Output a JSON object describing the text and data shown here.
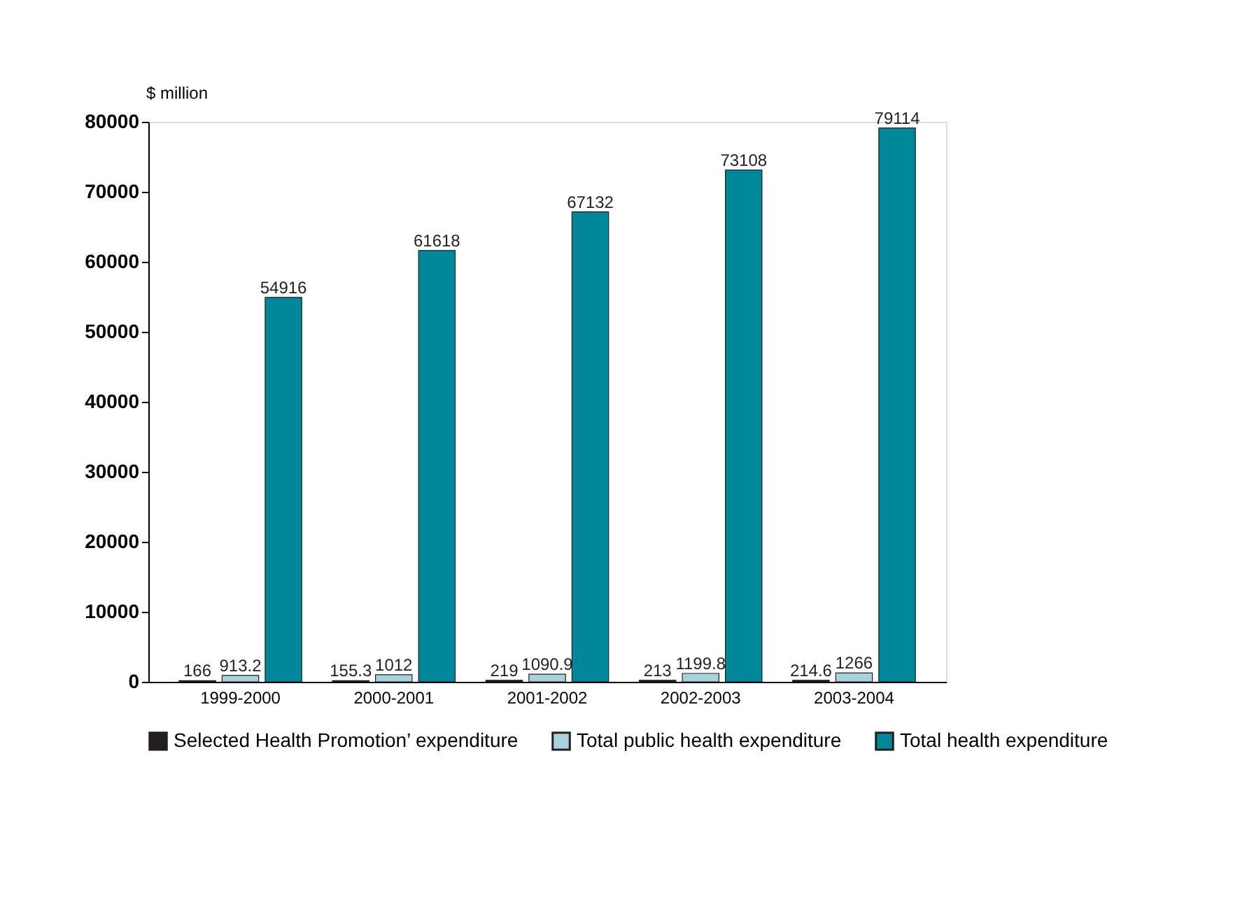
{
  "chart_data": {
    "type": "bar",
    "ylabel": "$ million",
    "categories": [
      "1999-2000",
      "2000-2001",
      "2001-2002",
      "2002-2003",
      "2003-2004"
    ],
    "series": [
      {
        "name": "Selected Health Promotion’ expenditure",
        "color": "#231f20",
        "values": [
          166,
          155.3,
          219,
          213,
          214.6
        ]
      },
      {
        "name": "Total public health expenditure",
        "color": "#a9d3dc",
        "values": [
          913.2,
          1012,
          1090.9,
          1199.8,
          1266
        ]
      },
      {
        "name": "Total health expenditure",
        "color": "#00889a",
        "values": [
          54916,
          61618,
          67132,
          73108,
          79114
        ]
      }
    ],
    "ylim": [
      0,
      80000
    ],
    "yticks": [
      0,
      10000,
      20000,
      30000,
      40000,
      50000,
      60000,
      70000,
      80000
    ],
    "data_labels": true,
    "legend": "bottom",
    "grid": false
  }
}
